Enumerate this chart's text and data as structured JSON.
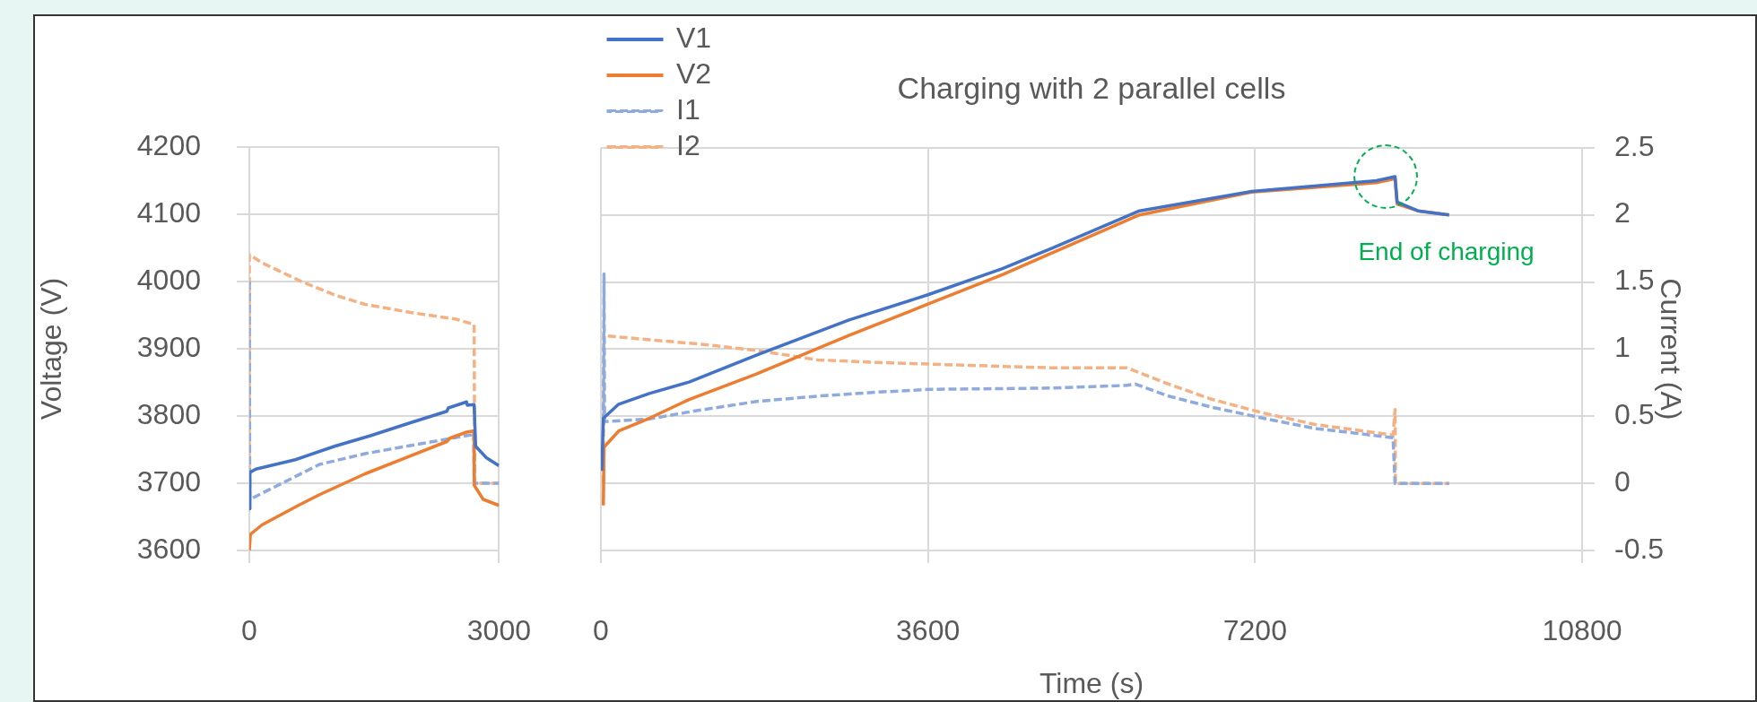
{
  "chart_data": [
    {
      "type": "line",
      "ylabel": "Voltage (V)",
      "xlim": [
        0,
        3000
      ],
      "xticks": [
        0,
        3000
      ],
      "ylim": [
        3600,
        4200
      ],
      "yticks": [
        3600,
        3700,
        3800,
        3900,
        4000,
        4100,
        4200
      ],
      "y2lim": [
        -0.5,
        2.5
      ],
      "grid": true,
      "marker": "none",
      "series": [
        {
          "color": "#4472c4",
          "line_style": "solid",
          "x": [
            0,
            7,
            78,
            552,
            1025,
            1463,
            1936,
            2373,
            2391,
            2610,
            2620,
            2701,
            2719,
            2847,
            3000
          ],
          "values": [
            3662,
            3716,
            3721,
            3735,
            3755,
            3771,
            3790,
            3807,
            3812,
            3821,
            3816,
            3817,
            3755,
            3738,
            3726
          ]
        },
        {
          "color": "#ed7d31",
          "line_style": "solid",
          "x": [
            0,
            13,
            151,
            588,
            843,
            1390,
            2373,
            2410,
            2610,
            2701,
            2702,
            2810,
            3000
          ],
          "values": [
            3600,
            3624,
            3638,
            3667,
            3683,
            3714,
            3762,
            3767,
            3776,
            3778,
            3697,
            3676,
            3667
          ]
        },
        {
          "color": "#8faadc",
          "line_style": "dashed",
          "axis": "y2",
          "x": [
            0,
            5,
            297,
            843,
            1390,
            2118,
            2665,
            2694,
            2701,
            3000
          ],
          "values": [
            1.5,
            -0.12,
            -0.03,
            0.14,
            0.22,
            0.3,
            0.36,
            0.38,
            0,
            0
          ]
        },
        {
          "color": "#f4b183",
          "line_style": "dashed",
          "axis": "y2",
          "x": [
            0,
            0,
            151,
            625,
            1025,
            1390,
            1936,
            2482,
            2701,
            2708,
            3000
          ],
          "values": [
            0,
            1.7,
            1.64,
            1.5,
            1.4,
            1.33,
            1.27,
            1.22,
            1.18,
            0,
            0
          ]
        }
      ]
    },
    {
      "type": "line",
      "title": "Charging with 2 parallel cells",
      "xlabel": "Time (s)",
      "y2label": "Current (A)",
      "xlim": [
        0,
        10800
      ],
      "xticks": [
        0,
        3600,
        7200,
        10800
      ],
      "ylim": [
        3600,
        4200
      ],
      "y2lim": [
        -0.5,
        2.5
      ],
      "y2ticks": [
        -0.5,
        0,
        0.5,
        1,
        1.5,
        2,
        2.5
      ],
      "grid": true,
      "legend": "top left",
      "marker": "none",
      "annotations": [
        {
          "text": "End of charging",
          "x": 8741,
          "y": 4157
        }
      ],
      "series": [
        {
          "name": "V1",
          "color": "#4472c4",
          "line_style": "solid",
          "x": [
            10,
            27,
            196,
            533,
            971,
            1712,
            2724,
            3600,
            4419,
            4976,
            5928,
            7163,
            8536,
            8741,
            8764,
            8993,
            9336
          ],
          "values": [
            3719,
            3797,
            3818,
            3834,
            3851,
            3891,
            3943,
            3981,
            4020,
            4051,
            4106,
            4135,
            4151,
            4157,
            4119,
            4106,
            4100
          ]
        },
        {
          "name": "V2",
          "color": "#ed7d31",
          "line_style": "solid",
          "x": [
            27,
            34,
            196,
            533,
            971,
            1712,
            2724,
            3600,
            4419,
            4976,
            5928,
            7163,
            8536,
            8741,
            8764,
            8993,
            9336
          ],
          "values": [
            3667,
            3754,
            3778,
            3797,
            3825,
            3863,
            3920,
            3967,
            4011,
            4044,
            4100,
            4134,
            4148,
            4154,
            4116,
            4106,
            4100
          ]
        },
        {
          "name": "I1",
          "color": "#8faadc",
          "line_style": "dashed",
          "axis": "y2",
          "x": [
            27,
            34,
            40,
            533,
            1038,
            1712,
            2387,
            3061,
            3600,
            4976,
            5791,
            5882,
            6248,
            6706,
            7255,
            7850,
            8719,
            8741,
            9336
          ],
          "values": [
            0.46,
            1.56,
            0.46,
            0.48,
            0.54,
            0.61,
            0.65,
            0.68,
            0.7,
            0.71,
            0.73,
            0.74,
            0.65,
            0.57,
            0.49,
            0.41,
            0.34,
            0,
            0
          ]
        },
        {
          "name": "I2",
          "color": "#f4b183",
          "line_style": "dashed",
          "axis": "y2",
          "x": [
            27,
            34,
            533,
            1207,
            1712,
            2387,
            3061,
            4976,
            5791,
            6248,
            6706,
            7255,
            7850,
            8719,
            8741,
            8746,
            9336
          ],
          "values": [
            0,
            1.1,
            1.07,
            1.03,
            0.99,
            0.92,
            0.9,
            0.86,
            0.86,
            0.74,
            0.63,
            0.53,
            0.44,
            0.36,
            0.55,
            0,
            0
          ]
        }
      ]
    }
  ]
}
